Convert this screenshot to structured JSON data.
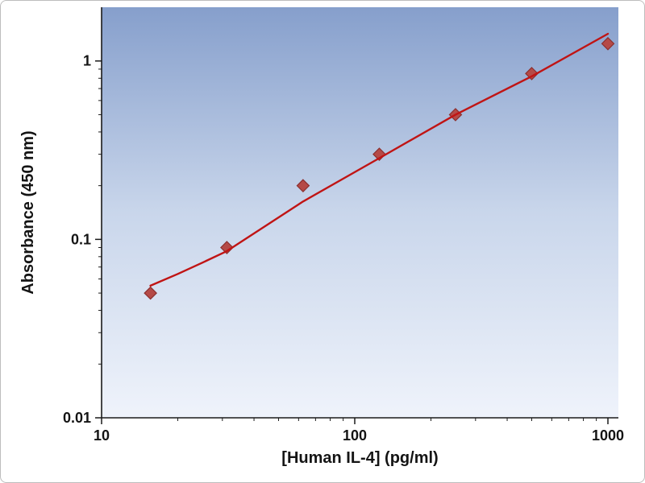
{
  "chart_data": {
    "type": "scatter",
    "title": "",
    "xlabel": "[Human IL-4] (pg/ml)",
    "ylabel": "Absorbance (450 nm)",
    "xscale": "log",
    "yscale": "log",
    "xlim": [
      10,
      1100
    ],
    "ylim": [
      0.01,
      2
    ],
    "grid": false,
    "legend": false,
    "x_ticks": [
      {
        "value": 10,
        "label": "10"
      },
      {
        "value": 100,
        "label": "100"
      },
      {
        "value": 1000,
        "label": "1000"
      }
    ],
    "y_ticks": [
      {
        "value": 1,
        "label": "1"
      },
      {
        "value": 0.1,
        "label": "0.1"
      },
      {
        "value": 0.01,
        "label": "0.01"
      }
    ],
    "plot_bg_gradient": [
      "#869fcc",
      "#c9d6eb",
      "#eff3fb"
    ],
    "axis_color": "#1a1a1a",
    "series": [
      {
        "name": "standard-points",
        "type": "scatter",
        "marker": "diamond",
        "fill": "#b54a47",
        "stroke": "#8c2f2e",
        "points": [
          [
            15.6,
            0.05
          ],
          [
            31.25,
            0.09
          ],
          [
            62.5,
            0.2
          ],
          [
            125,
            0.3
          ],
          [
            250,
            0.5
          ],
          [
            500,
            0.85
          ],
          [
            1000,
            1.25
          ]
        ]
      },
      {
        "name": "fit-line",
        "type": "line",
        "color": "#c01414",
        "points": [
          [
            15.6,
            0.055
          ],
          [
            20,
            0.064
          ],
          [
            25,
            0.074
          ],
          [
            31.25,
            0.086
          ],
          [
            62.5,
            0.163
          ],
          [
            125,
            0.285
          ],
          [
            250,
            0.5
          ],
          [
            500,
            0.82
          ],
          [
            1000,
            1.42
          ]
        ]
      }
    ]
  }
}
